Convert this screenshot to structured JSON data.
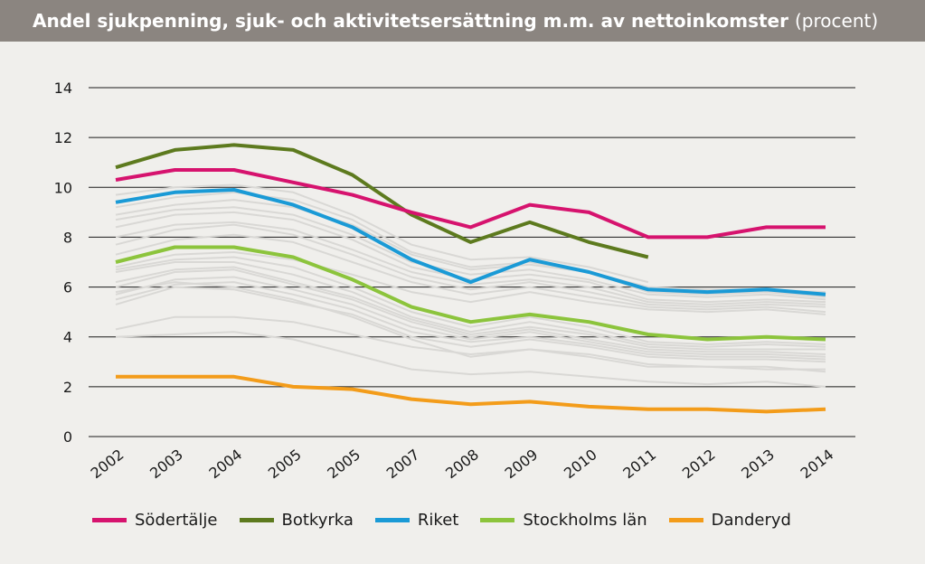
{
  "title": "Andel sjukpenning, sjuk- och aktivitetsersättning m.m. av nettoinkomster",
  "title_unit": "(procent)",
  "chart_data": {
    "type": "line",
    "title": "Andel sjukpenning, sjuk- och aktivitetsersättning m.m. av nettoinkomster",
    "ylabel": "",
    "xlabel": "",
    "categories": [
      "2002",
      "2003",
      "2004",
      "2005",
      "2005",
      "2007",
      "2008",
      "2009",
      "2010",
      "2011",
      "2012",
      "2013",
      "2014"
    ],
    "ylim": [
      0,
      14
    ],
    "yticks": [
      0,
      2,
      4,
      6,
      8,
      10,
      12,
      14
    ],
    "grid": true,
    "legend_position": "bottom",
    "series": [
      {
        "name": "Södertälje",
        "color": "#d6136e",
        "values": [
          10.3,
          10.7,
          10.7,
          10.2,
          9.7,
          9.0,
          8.4,
          9.3,
          9.0,
          8.0,
          8.0,
          8.4,
          8.4
        ]
      },
      {
        "name": "Botkyrka",
        "color": "#5d7a1e",
        "values": [
          10.8,
          11.5,
          11.7,
          11.5,
          10.5,
          8.9,
          7.8,
          8.6,
          7.8,
          7.2,
          null,
          null,
          null
        ]
      },
      {
        "name": "Riket",
        "color": "#1a9ad6",
        "values": [
          9.4,
          9.8,
          9.9,
          9.3,
          8.4,
          7.1,
          6.2,
          7.1,
          6.6,
          5.9,
          5.8,
          5.9,
          5.7
        ]
      },
      {
        "name": "Stockholms län",
        "color": "#8cc43c",
        "values": [
          7.0,
          7.6,
          7.6,
          7.2,
          6.3,
          5.2,
          4.6,
          4.9,
          4.6,
          4.1,
          3.9,
          4.0,
          3.9
        ]
      },
      {
        "name": "Danderyd",
        "color": "#f39c1a",
        "values": [
          2.4,
          2.4,
          2.4,
          2.0,
          1.9,
          1.5,
          1.3,
          1.4,
          1.2,
          1.1,
          1.1,
          1.0,
          1.1
        ]
      }
    ],
    "background_series": {
      "color": "#d9d8d5",
      "values": [
        [
          9.7,
          10.0,
          10.1,
          9.8,
          8.9,
          7.7,
          7.1,
          7.2,
          6.8,
          6.2,
          null,
          null,
          null
        ],
        [
          9.2,
          9.6,
          9.8,
          9.5,
          8.7,
          7.4,
          6.8,
          7.0,
          6.6,
          6.0,
          5.9,
          5.9,
          5.8
        ],
        [
          8.9,
          9.3,
          9.5,
          9.2,
          8.5,
          7.3,
          6.7,
          6.9,
          6.6,
          5.8,
          5.7,
          5.8,
          5.6
        ],
        [
          8.7,
          9.1,
          9.2,
          8.9,
          8.1,
          7.0,
          6.5,
          6.7,
          6.3,
          5.7,
          5.6,
          5.7,
          5.5
        ],
        [
          8.4,
          8.9,
          9.0,
          8.7,
          7.9,
          6.8,
          6.3,
          6.5,
          6.2,
          5.5,
          5.4,
          5.5,
          5.4
        ],
        [
          8.0,
          8.5,
          8.6,
          8.3,
          7.5,
          6.6,
          6.1,
          6.3,
          6.0,
          5.4,
          5.3,
          5.4,
          5.3
        ],
        [
          7.7,
          8.3,
          8.5,
          8.1,
          7.3,
          6.4,
          5.9,
          6.2,
          5.8,
          5.3,
          5.2,
          5.3,
          5.2
        ],
        [
          7.3,
          7.9,
          8.1,
          7.8,
          7.0,
          6.2,
          5.7,
          6.0,
          5.6,
          5.2,
          5.1,
          5.2,
          5.0
        ],
        [
          6.8,
          7.3,
          7.4,
          7.1,
          6.5,
          5.8,
          5.4,
          5.8,
          5.4,
          5.1,
          5.0,
          5.1,
          4.9
        ],
        [
          6.7,
          7.1,
          7.2,
          6.8,
          6.0,
          5.0,
          4.4,
          4.8,
          4.4,
          3.8,
          3.7,
          3.8,
          3.7
        ],
        [
          6.6,
          7.0,
          7.0,
          6.5,
          5.8,
          4.8,
          4.2,
          4.6,
          4.2,
          3.7,
          3.6,
          3.7,
          3.6
        ],
        [
          6.2,
          6.7,
          6.8,
          6.2,
          5.6,
          4.7,
          4.1,
          4.4,
          4.1,
          3.6,
          3.5,
          3.5,
          3.5
        ],
        [
          6.0,
          6.6,
          6.7,
          6.1,
          5.5,
          4.6,
          4.0,
          4.3,
          3.9,
          3.5,
          3.4,
          3.4,
          3.3
        ],
        [
          5.7,
          6.3,
          6.4,
          5.9,
          5.3,
          4.4,
          3.9,
          4.2,
          3.8,
          3.4,
          3.3,
          3.3,
          3.2
        ],
        [
          5.5,
          6.1,
          6.2,
          5.7,
          5.1,
          4.2,
          3.8,
          4.0,
          3.7,
          3.3,
          3.2,
          3.2,
          3.1
        ],
        [
          5.3,
          6.0,
          5.9,
          5.4,
          4.9,
          4.0,
          3.6,
          3.9,
          3.6,
          3.2,
          3.1,
          3.1,
          3.0
        ],
        [
          4.3,
          4.8,
          4.8,
          4.6,
          4.1,
          3.6,
          3.3,
          3.5,
          3.2,
          2.8,
          2.8,
          2.7,
          2.7
        ],
        [
          4.0,
          4.1,
          4.2,
          3.9,
          3.3,
          2.7,
          2.5,
          2.6,
          2.4,
          2.2,
          2.1,
          2.2,
          2.0
        ],
        [
          5.8,
          6.2,
          6.0,
          5.5,
          4.8,
          3.9,
          3.2,
          3.5,
          3.3,
          2.9,
          2.8,
          2.8,
          2.6
        ]
      ]
    }
  }
}
